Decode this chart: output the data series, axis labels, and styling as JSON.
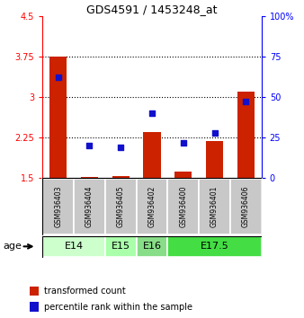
{
  "title": "GDS4591 / 1453248_at",
  "samples": [
    "GSM936403",
    "GSM936404",
    "GSM936405",
    "GSM936402",
    "GSM936400",
    "GSM936401",
    "GSM936406"
  ],
  "red_values": [
    3.75,
    1.52,
    1.54,
    2.35,
    1.62,
    2.18,
    3.1
  ],
  "blue_values": [
    62,
    20,
    19,
    40,
    22,
    28,
    47
  ],
  "ylim_left": [
    1.5,
    4.5
  ],
  "ylim_right": [
    0,
    100
  ],
  "yticks_left": [
    1.5,
    2.25,
    3.0,
    3.75,
    4.5
  ],
  "yticks_right": [
    0,
    25,
    50,
    75,
    100
  ],
  "ytick_labels_left": [
    "1.5",
    "2.25",
    "3",
    "3.75",
    "4.5"
  ],
  "ytick_labels_right": [
    "0",
    "25",
    "50",
    "75",
    "100%"
  ],
  "grid_lines": [
    2.25,
    3.0,
    3.75
  ],
  "bar_baseline": 1.5,
  "bar_color": "#cc2200",
  "square_color": "#1111cc",
  "age_groups": [
    {
      "label": "E14",
      "samples": [
        "GSM936403",
        "GSM936404"
      ],
      "color": "#ccffcc"
    },
    {
      "label": "E15",
      "samples": [
        "GSM936405"
      ],
      "color": "#aaffaa"
    },
    {
      "label": "E16",
      "samples": [
        "GSM936402"
      ],
      "color": "#88dd88"
    },
    {
      "label": "E17.5",
      "samples": [
        "GSM936400",
        "GSM936401",
        "GSM936406"
      ],
      "color": "#44dd44"
    }
  ],
  "legend_red_label": "transformed count",
  "legend_blue_label": "percentile rank within the sample",
  "age_label": "age",
  "sample_box_color": "#c8c8c8",
  "bar_width": 0.55,
  "square_size": 25,
  "fig_width": 3.38,
  "fig_height": 3.54,
  "dpi": 100
}
